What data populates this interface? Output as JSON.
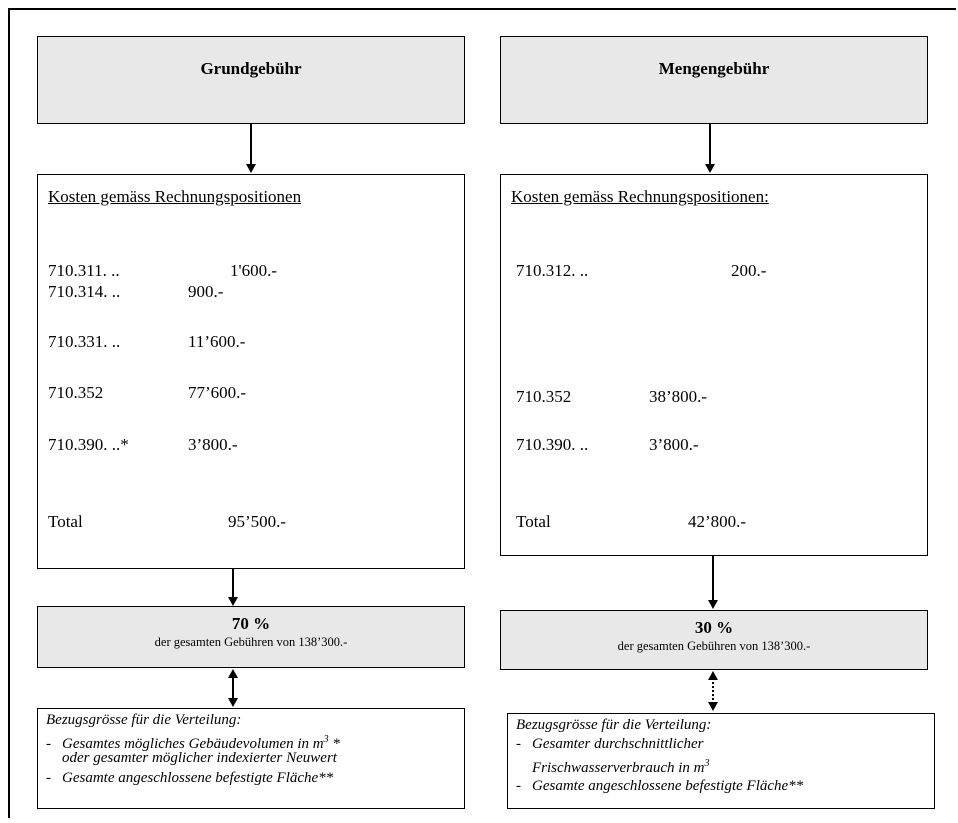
{
  "left": {
    "header": "Grundgebühr",
    "costs_title": "Kosten gemäss Rechnungspositionen",
    "rows": [
      {
        "code": "710.311. ..",
        "amount": "1'600.-"
      },
      {
        "code": "710.314. ..",
        "amount": "900.-"
      },
      {
        "code": "710.331. ..",
        "amount": "11’600.-"
      },
      {
        "code": "710.352",
        "amount": "77’600.-"
      },
      {
        "code": "710.390. ..*",
        "amount": "3’800.-"
      }
    ],
    "total_label": "Total",
    "total_amount": "95’500.-",
    "percent": "70 %",
    "percent_note": "der gesamten Gebühren von 138’300.-",
    "basis_title": "Bezugsgrösse für die Verteilung:",
    "basis_items": [
      {
        "dash": "-",
        "text": "Gesamtes mögliches Gebäudevolumen in m",
        "sup": "3",
        "tail": " *"
      },
      {
        "dash": "",
        "text": "oder gesamter möglicher indexierter Neuwert"
      },
      {
        "dash": "-",
        "text": "Gesamte angeschlossene befestigte Fläche**"
      }
    ]
  },
  "right": {
    "header": "Mengengebühr",
    "costs_title": "Kosten gemäss Rechnungspositionen:",
    "rows": [
      {
        "code": "710.312. ..",
        "amount": "200.-"
      },
      {
        "code": "710.352",
        "amount": "38’800.-"
      },
      {
        "code": "710.390. ..",
        "amount": "3’800.-"
      }
    ],
    "total_label": "Total",
    "total_amount": "42’800.-",
    "percent": "30 %",
    "percent_note": "der gesamten Gebühren von 138’300.-",
    "basis_title": "Bezugsgrösse für die Verteilung:",
    "basis_items": [
      {
        "dash": "-",
        "text": "Gesamter durchschnittlicher"
      },
      {
        "dash": "",
        "text": "Frischwasserverbrauch in m",
        "sup": "3"
      },
      {
        "dash": "-",
        "text": "Gesamte angeschlossene befestigte Fläche**"
      }
    ]
  }
}
